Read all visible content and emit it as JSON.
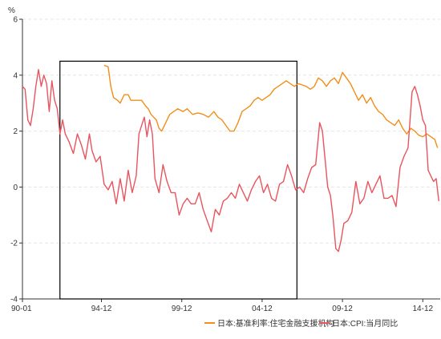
{
  "chart_data": {
    "type": "line",
    "unit_label": "%",
    "ylim": [
      -4,
      6
    ],
    "y_ticks": [
      "6",
      "4",
      "2",
      "0",
      "-2",
      "-4"
    ],
    "x_ticks": [
      "90-01",
      "94-12",
      "99-12",
      "04-12",
      "09-12",
      "14-12"
    ],
    "xlim": [
      "1990-01",
      "2016-01"
    ],
    "grid": true,
    "legend_position": "bottom-right",
    "colors": {
      "rate": "#f28e1c",
      "cpi": "#e8545f",
      "box": "#000000",
      "axis": "#333333",
      "grid": "#e6e6e6"
    },
    "highlight_box": {
      "x_from": "1992-05",
      "x_to": "2007-02",
      "y_from": -4,
      "y_to": 4.5
    },
    "series": [
      {
        "name": "日本:基准利率:住宅金融支援机构",
        "key": "rate",
        "points": [
          [
            "1995-02",
            4.35
          ],
          [
            "1995-05",
            4.3
          ],
          [
            "1995-07",
            3.6
          ],
          [
            "1995-09",
            3.2
          ],
          [
            "1995-12",
            3.1
          ],
          [
            "1996-02",
            3.0
          ],
          [
            "1996-05",
            3.3
          ],
          [
            "1996-08",
            3.3
          ],
          [
            "1996-10",
            3.1
          ],
          [
            "1997-03",
            3.1
          ],
          [
            "1997-06",
            3.1
          ],
          [
            "1997-09",
            2.9
          ],
          [
            "1997-11",
            2.8
          ],
          [
            "1998-01",
            2.6
          ],
          [
            "1998-03",
            2.5
          ],
          [
            "1998-05",
            2.4
          ],
          [
            "1998-07",
            2.1
          ],
          [
            "1998-09",
            2.0
          ],
          [
            "1998-12",
            2.3
          ],
          [
            "1999-03",
            2.6
          ],
          [
            "1999-06",
            2.7
          ],
          [
            "1999-09",
            2.8
          ],
          [
            "2000-01",
            2.7
          ],
          [
            "2000-04",
            2.8
          ],
          [
            "2000-08",
            2.6
          ],
          [
            "2000-12",
            2.65
          ],
          [
            "2001-04",
            2.6
          ],
          [
            "2001-08",
            2.5
          ],
          [
            "2001-12",
            2.7
          ],
          [
            "2002-03",
            2.5
          ],
          [
            "2002-06",
            2.4
          ],
          [
            "2002-09",
            2.2
          ],
          [
            "2002-12",
            2.0
          ],
          [
            "2003-03",
            2.0
          ],
          [
            "2003-06",
            2.3
          ],
          [
            "2003-09",
            2.7
          ],
          [
            "2003-12",
            2.8
          ],
          [
            "2004-03",
            2.9
          ],
          [
            "2004-06",
            3.1
          ],
          [
            "2004-09",
            3.2
          ],
          [
            "2004-12",
            3.1
          ],
          [
            "2005-03",
            3.2
          ],
          [
            "2005-06",
            3.3
          ],
          [
            "2005-09",
            3.5
          ],
          [
            "2005-12",
            3.6
          ],
          [
            "2006-03",
            3.7
          ],
          [
            "2006-06",
            3.8
          ],
          [
            "2006-09",
            3.7
          ],
          [
            "2006-12",
            3.6
          ],
          [
            "2007-03",
            3.7
          ],
          [
            "2007-06",
            3.65
          ],
          [
            "2007-09",
            3.6
          ],
          [
            "2007-12",
            3.5
          ],
          [
            "2008-03",
            3.6
          ],
          [
            "2008-06",
            3.9
          ],
          [
            "2008-09",
            3.8
          ],
          [
            "2008-12",
            3.6
          ],
          [
            "2009-03",
            3.8
          ],
          [
            "2009-06",
            3.9
          ],
          [
            "2009-09",
            3.7
          ],
          [
            "2009-12",
            4.1
          ],
          [
            "2010-03",
            3.9
          ],
          [
            "2010-06",
            3.7
          ],
          [
            "2010-09",
            3.4
          ],
          [
            "2010-12",
            3.1
          ],
          [
            "2011-03",
            3.3
          ],
          [
            "2011-06",
            3.0
          ],
          [
            "2011-09",
            3.2
          ],
          [
            "2011-12",
            2.9
          ],
          [
            "2012-03",
            2.7
          ],
          [
            "2012-06",
            2.6
          ],
          [
            "2012-09",
            2.4
          ],
          [
            "2012-12",
            2.3
          ],
          [
            "2013-03",
            2.2
          ],
          [
            "2013-06",
            2.4
          ],
          [
            "2013-09",
            2.1
          ],
          [
            "2013-12",
            1.9
          ],
          [
            "2014-03",
            2.1
          ],
          [
            "2014-06",
            2.0
          ],
          [
            "2014-09",
            1.85
          ],
          [
            "2014-12",
            1.8
          ],
          [
            "2015-03",
            1.9
          ],
          [
            "2015-06",
            1.8
          ],
          [
            "2015-09",
            1.7
          ],
          [
            "2015-11",
            1.4
          ]
        ]
      },
      {
        "name": "日本:CPI:当月同比",
        "key": "cpi",
        "points": [
          [
            "1990-01",
            3.6
          ],
          [
            "1990-03",
            3.5
          ],
          [
            "1990-05",
            2.4
          ],
          [
            "1990-07",
            2.2
          ],
          [
            "1990-09",
            2.8
          ],
          [
            "1990-11",
            3.6
          ],
          [
            "1991-01",
            4.2
          ],
          [
            "1991-03",
            3.6
          ],
          [
            "1991-05",
            4.0
          ],
          [
            "1991-07",
            3.7
          ],
          [
            "1991-09",
            2.7
          ],
          [
            "1991-11",
            3.8
          ],
          [
            "1992-01",
            3.1
          ],
          [
            "1992-03",
            2.8
          ],
          [
            "1992-05",
            1.9
          ],
          [
            "1992-07",
            2.4
          ],
          [
            "1992-09",
            1.9
          ],
          [
            "1992-12",
            1.6
          ],
          [
            "1993-03",
            1.2
          ],
          [
            "1993-06",
            1.9
          ],
          [
            "1993-09",
            1.5
          ],
          [
            "1993-12",
            1.0
          ],
          [
            "1994-03",
            1.9
          ],
          [
            "1994-05",
            1.3
          ],
          [
            "1994-08",
            0.9
          ],
          [
            "1994-11",
            1.1
          ],
          [
            "1995-02",
            0.1
          ],
          [
            "1995-05",
            -0.1
          ],
          [
            "1995-08",
            0.2
          ],
          [
            "1995-11",
            -0.6
          ],
          [
            "1996-02",
            0.3
          ],
          [
            "1996-05",
            -0.5
          ],
          [
            "1996-08",
            0.6
          ],
          [
            "1996-11",
            -0.2
          ],
          [
            "1997-02",
            0.4
          ],
          [
            "1997-04",
            1.9
          ],
          [
            "1997-06",
            2.2
          ],
          [
            "1997-08",
            2.5
          ],
          [
            "1997-10",
            1.8
          ],
          [
            "1997-12",
            2.4
          ],
          [
            "1998-02",
            1.9
          ],
          [
            "1998-04",
            0.3
          ],
          [
            "1998-07",
            -0.2
          ],
          [
            "1998-10",
            0.8
          ],
          [
            "1999-01",
            0.2
          ],
          [
            "1999-04",
            -0.2
          ],
          [
            "1999-07",
            -0.2
          ],
          [
            "1999-10",
            -1.0
          ],
          [
            "2000-01",
            -0.6
          ],
          [
            "2000-04",
            -0.4
          ],
          [
            "2000-07",
            -0.6
          ],
          [
            "2000-10",
            -0.6
          ],
          [
            "2001-01",
            -0.2
          ],
          [
            "2001-04",
            -0.8
          ],
          [
            "2001-07",
            -1.2
          ],
          [
            "2001-10",
            -1.6
          ],
          [
            "2002-01",
            -0.8
          ],
          [
            "2002-04",
            -1.0
          ],
          [
            "2002-07",
            -0.5
          ],
          [
            "2002-10",
            -0.4
          ],
          [
            "2003-01",
            -0.2
          ],
          [
            "2003-04",
            -0.4
          ],
          [
            "2003-07",
            0.1
          ],
          [
            "2003-10",
            -0.2
          ],
          [
            "2004-01",
            -0.5
          ],
          [
            "2004-04",
            -0.1
          ],
          [
            "2004-07",
            0.2
          ],
          [
            "2004-10",
            0.4
          ],
          [
            "2005-01",
            -0.2
          ],
          [
            "2005-04",
            0.1
          ],
          [
            "2005-07",
            -0.4
          ],
          [
            "2005-10",
            -0.5
          ],
          [
            "2006-01",
            0.1
          ],
          [
            "2006-04",
            0.2
          ],
          [
            "2006-07",
            0.8
          ],
          [
            "2006-10",
            0.4
          ],
          [
            "2007-01",
            -0.1
          ],
          [
            "2007-04",
            0.0
          ],
          [
            "2007-07",
            -0.2
          ],
          [
            "2007-10",
            0.3
          ],
          [
            "2008-01",
            0.7
          ],
          [
            "2008-04",
            0.8
          ],
          [
            "2008-07",
            2.3
          ],
          [
            "2008-09",
            2.0
          ],
          [
            "2008-11",
            1.0
          ],
          [
            "2009-01",
            0.0
          ],
          [
            "2009-03",
            -0.3
          ],
          [
            "2009-05",
            -1.1
          ],
          [
            "2009-07",
            -2.2
          ],
          [
            "2009-09",
            -2.3
          ],
          [
            "2009-11",
            -1.9
          ],
          [
            "2010-01",
            -1.3
          ],
          [
            "2010-04",
            -1.2
          ],
          [
            "2010-07",
            -0.9
          ],
          [
            "2010-10",
            0.2
          ],
          [
            "2011-01",
            -0.6
          ],
          [
            "2011-04",
            -0.4
          ],
          [
            "2011-07",
            0.2
          ],
          [
            "2011-10",
            -0.2
          ],
          [
            "2012-01",
            0.1
          ],
          [
            "2012-04",
            0.4
          ],
          [
            "2012-07",
            -0.4
          ],
          [
            "2012-10",
            -0.4
          ],
          [
            "2013-01",
            -0.3
          ],
          [
            "2013-04",
            -0.7
          ],
          [
            "2013-07",
            0.7
          ],
          [
            "2013-10",
            1.1
          ],
          [
            "2014-01",
            1.4
          ],
          [
            "2014-04",
            3.4
          ],
          [
            "2014-06",
            3.6
          ],
          [
            "2014-08",
            3.3
          ],
          [
            "2014-10",
            2.9
          ],
          [
            "2014-12",
            2.4
          ],
          [
            "2015-02",
            2.2
          ],
          [
            "2015-04",
            0.6
          ],
          [
            "2015-06",
            0.4
          ],
          [
            "2015-08",
            0.2
          ],
          [
            "2015-10",
            0.3
          ],
          [
            "2015-12",
            -0.5
          ]
        ]
      }
    ]
  }
}
